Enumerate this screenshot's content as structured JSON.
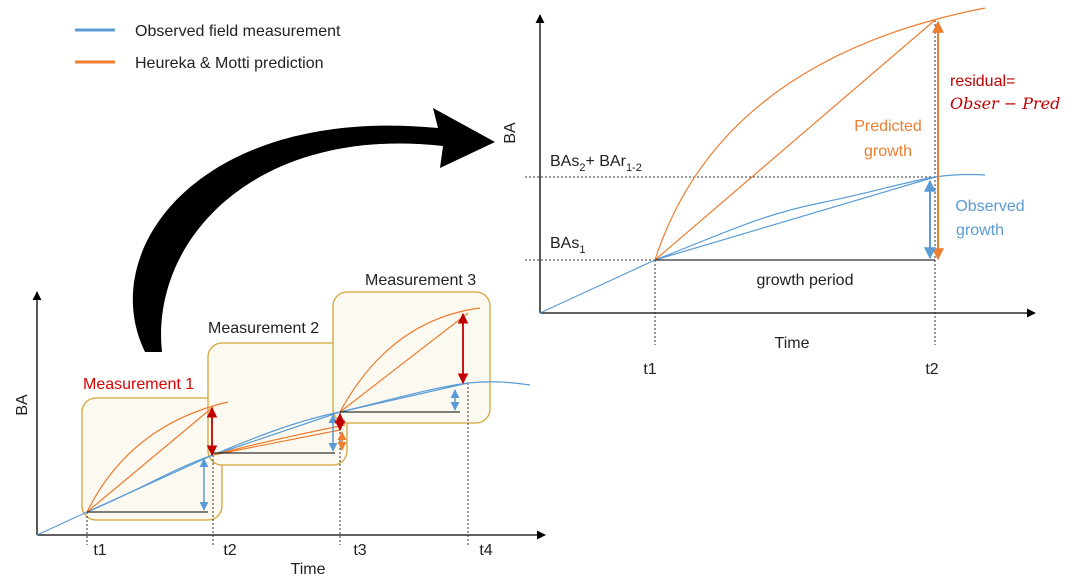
{
  "legend": [
    {
      "label": "Observed field measurement",
      "color": "#5b9bd5"
    },
    {
      "label": "Heureka & Motti prediction",
      "color": "#ed7d31"
    }
  ],
  "left_chart": {
    "y_label": "BA",
    "x_label": "Time",
    "measurements": [
      "Measurement 1",
      "Measurement 2",
      "Measurement 3"
    ],
    "ticks": [
      "t1",
      "t2",
      "t3",
      "t4"
    ]
  },
  "right_chart": {
    "y_label": "BA",
    "x_label": "Time",
    "ticks": [
      "t1",
      "t2"
    ],
    "level_2": {
      "parts": [
        "BAs",
        "2",
        "+ BAr",
        "1-2"
      ]
    },
    "level_1": {
      "parts": [
        "BAs",
        "1"
      ]
    },
    "growth_period": "growth period",
    "predicted": [
      "Predicted",
      "growth"
    ],
    "observed": [
      "Observed",
      "growth"
    ],
    "residual": [
      "residual=",
      "Obser − Pred"
    ]
  }
}
